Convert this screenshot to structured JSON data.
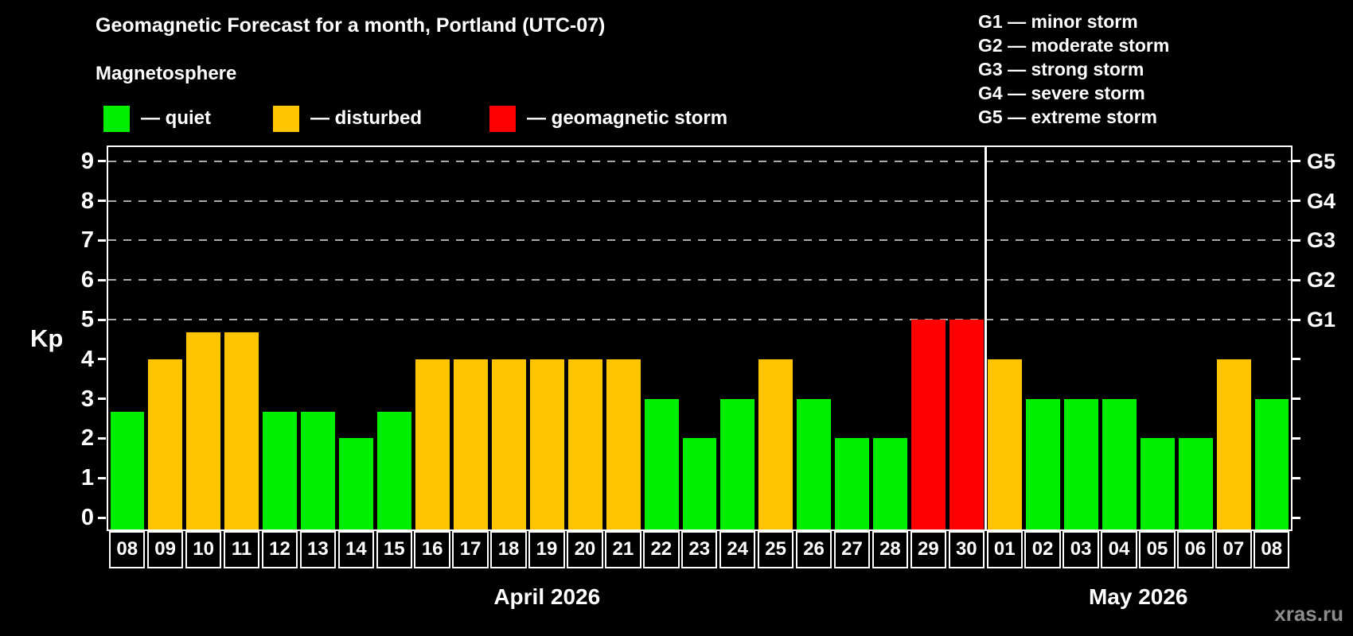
{
  "title": "Geomagnetic Forecast for a month, Portland (UTC-07)",
  "legend": {
    "heading": "Magnetosphere",
    "items": [
      {
        "key": "quiet",
        "label": "— quiet",
        "color": "#00ee00"
      },
      {
        "key": "disturbed",
        "label": "— disturbed",
        "color": "#ffc400"
      },
      {
        "key": "storm",
        "label": "— geomagnetic storm",
        "color": "#ff0000"
      }
    ]
  },
  "storm_scale_legend": [
    "G1 — minor storm",
    "G2 — moderate storm",
    "G3 — strong storm",
    "G4 — severe storm",
    "G5 — extreme storm"
  ],
  "watermark": "xras.ru",
  "status_colors": {
    "quiet": "#00ee00",
    "disturbed": "#ffc400",
    "storm": "#ff0000"
  },
  "chart_data": {
    "type": "bar",
    "title": "Geomagnetic Forecast for a month, Portland (UTC-07)",
    "ylabel": "Kp",
    "ylim": [
      0,
      9.4
    ],
    "y_ticks": [
      0,
      1,
      2,
      3,
      4,
      5,
      6,
      7,
      8,
      9
    ],
    "gridlines_at": [
      5,
      6,
      7,
      8,
      9
    ],
    "grid": "dashed-horizontal-on-storm-levels",
    "legend_position": "top",
    "right_axis": [
      {
        "label": "G1",
        "kp": 5
      },
      {
        "label": "G2",
        "kp": 6
      },
      {
        "label": "G3",
        "kp": 7
      },
      {
        "label": "G4",
        "kp": 8
      },
      {
        "label": "G5",
        "kp": 9
      }
    ],
    "sections": [
      {
        "label": "April 2026",
        "count": 23
      },
      {
        "label": "May 2026",
        "count": 8
      }
    ],
    "bars": [
      {
        "day": "08",
        "kp": 2.67,
        "status": "quiet"
      },
      {
        "day": "09",
        "kp": 4,
        "status": "disturbed"
      },
      {
        "day": "10",
        "kp": 4.67,
        "status": "disturbed"
      },
      {
        "day": "11",
        "kp": 4.67,
        "status": "disturbed"
      },
      {
        "day": "12",
        "kp": 2.67,
        "status": "quiet"
      },
      {
        "day": "13",
        "kp": 2.67,
        "status": "quiet"
      },
      {
        "day": "14",
        "kp": 2,
        "status": "quiet"
      },
      {
        "day": "15",
        "kp": 2.67,
        "status": "quiet"
      },
      {
        "day": "16",
        "kp": 4,
        "status": "disturbed"
      },
      {
        "day": "17",
        "kp": 4,
        "status": "disturbed"
      },
      {
        "day": "18",
        "kp": 4,
        "status": "disturbed"
      },
      {
        "day": "19",
        "kp": 4,
        "status": "disturbed"
      },
      {
        "day": "20",
        "kp": 4,
        "status": "disturbed"
      },
      {
        "day": "21",
        "kp": 4,
        "status": "disturbed"
      },
      {
        "day": "22",
        "kp": 3,
        "status": "quiet"
      },
      {
        "day": "23",
        "kp": 2,
        "status": "quiet"
      },
      {
        "day": "24",
        "kp": 3,
        "status": "quiet"
      },
      {
        "day": "25",
        "kp": 4,
        "status": "disturbed"
      },
      {
        "day": "26",
        "kp": 3,
        "status": "quiet"
      },
      {
        "day": "27",
        "kp": 2,
        "status": "quiet"
      },
      {
        "day": "28",
        "kp": 2,
        "status": "quiet"
      },
      {
        "day": "29",
        "kp": 5,
        "status": "storm"
      },
      {
        "day": "30",
        "kp": 5,
        "status": "storm"
      },
      {
        "day": "01",
        "kp": 4,
        "status": "disturbed"
      },
      {
        "day": "02",
        "kp": 3,
        "status": "quiet"
      },
      {
        "day": "03",
        "kp": 3,
        "status": "quiet"
      },
      {
        "day": "04",
        "kp": 3,
        "status": "quiet"
      },
      {
        "day": "05",
        "kp": 2,
        "status": "quiet"
      },
      {
        "day": "06",
        "kp": 2,
        "status": "quiet"
      },
      {
        "day": "07",
        "kp": 4,
        "status": "disturbed"
      },
      {
        "day": "08",
        "kp": 3,
        "status": "quiet"
      }
    ]
  }
}
